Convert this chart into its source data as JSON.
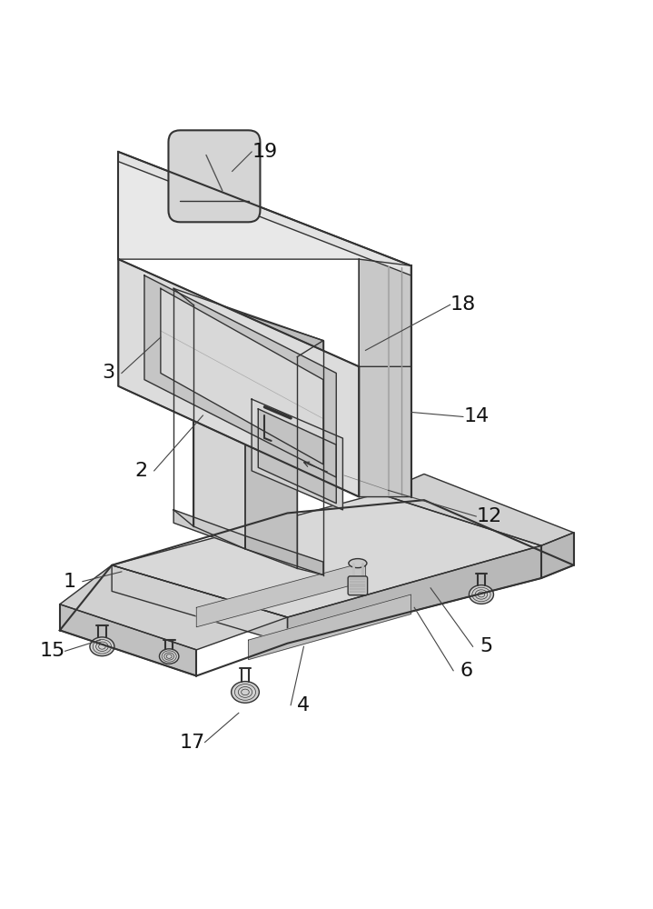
{
  "fig_width": 7.19,
  "fig_height": 10.0,
  "dpi": 100,
  "bg_color": "#ffffff",
  "line_color": "#333333",
  "line_width": 1.0,
  "thin_line": 0.5,
  "label_fontsize": 16
}
